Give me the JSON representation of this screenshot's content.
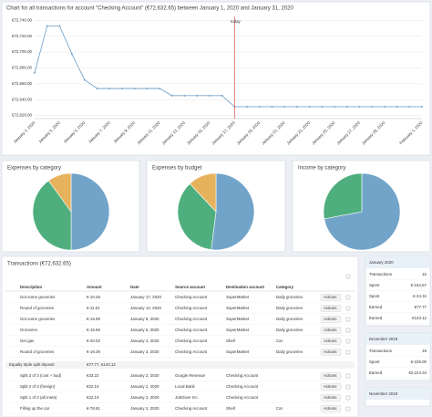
{
  "chart_data": [
    {
      "type": "line",
      "title": "Chart for all transactions for account \"Checking Account\" (€72,632.65) between January 1, 2020 and January 31, 2020",
      "x": [
        "January 1, 2020",
        null,
        "January 3, 2020",
        null,
        "January 5, 2020",
        null,
        "January 7, 2020",
        null,
        "January 9, 2020",
        null,
        "January 11, 2020",
        null,
        "January 13, 2020",
        null,
        "January 15, 2020",
        null,
        "January 17, 2020",
        null,
        "January 19, 2020",
        null,
        "January 21, 2020",
        null,
        "January 23, 2020",
        null,
        "January 25, 2020",
        null,
        "January 27, 2020",
        null,
        "January 29, 2020",
        null,
        null,
        "February 1, 2020"
      ],
      "series": [
        {
          "color": "#7aa6cc",
          "values": [
            72674,
            72733,
            72733,
            72697,
            72665,
            72654,
            72654,
            72654,
            72654,
            72654,
            72654,
            72645,
            72645,
            72645,
            72645,
            72645,
            72631,
            72631,
            72631,
            72631,
            72631,
            72631,
            72631,
            72631,
            72631,
            72631,
            72631,
            72631,
            72631,
            72631,
            72631,
            72631
          ]
        }
      ],
      "ylim": [
        72616,
        72745
      ],
      "yticks": [
        {
          "value": 72620,
          "label": "€72,620.00"
        },
        {
          "value": 72640,
          "label": "€72,640.00"
        },
        {
          "value": 72660,
          "label": "€72,660.00"
        },
        {
          "value": 72680,
          "label": "€72,680.00"
        },
        {
          "value": 72700,
          "label": "€72,700.00"
        },
        {
          "value": 72720,
          "label": "€72,720.00"
        },
        {
          "value": 72740,
          "label": "€72,740.00"
        }
      ],
      "grid": true,
      "annotations": [
        {
          "x": "January 17, 2020",
          "label": "today",
          "color": "#d9534f"
        }
      ]
    },
    {
      "type": "pie",
      "title": "Expenses by category",
      "values": [
        50,
        40,
        10
      ],
      "colors": [
        "#72a4c9",
        "#4fae7d",
        "#e6b25c"
      ]
    },
    {
      "type": "pie",
      "title": "Expenses by budget",
      "values": [
        52,
        36,
        12
      ],
      "colors": [
        "#72a4c9",
        "#4fae7d",
        "#e6b25c"
      ]
    },
    {
      "type": "pie",
      "title": "Income by category",
      "values": [
        72,
        28
      ],
      "colors": [
        "#72a4c9",
        "#4fae7d"
      ]
    }
  ],
  "transactions": {
    "title": "Transactions (€72,632.65)",
    "columns": [
      "Description",
      "Amount",
      "Date",
      "Source account",
      "Destination account",
      "Category"
    ],
    "action_label": "Actions",
    "rows": [
      [
        "Got some groceries",
        "€-10.26",
        "January 17, 2020",
        "Checking Account",
        "SuperMarket",
        "Daily groceries"
      ],
      [
        "Round of groceries",
        "€-11.51",
        "January 12, 2020",
        "Checking Account",
        "SuperMarket",
        "Daily groceries"
      ],
      [
        "Got some groceries",
        "€-15.95",
        "January 8, 2020",
        "Checking Account",
        "SuperMarket",
        "Daily groceries"
      ],
      [
        "Groceries",
        "€-15.66",
        "January 5, 2020",
        "Checking Account",
        "SuperMarket",
        "Daily groceries"
      ],
      [
        "Get gas",
        "€-40.02",
        "January 4, 2020",
        "Checking Account",
        "Shell",
        "Car"
      ],
      [
        "Round of groceries",
        "€-19.29",
        "January 3, 2020",
        "Checking Account",
        "SuperMarket",
        "Daily groceries"
      ],
      [
        "Equally triple split deposit",
        "€77.77, €143.12"
      ],
      [
        "Split 3 of 3 (cost + bud)",
        "€33.22",
        "January 2, 2020",
        "Google Revenue",
        "Checking Account"
      ],
      [
        "Split 2 of 3 (foreign)",
        "€22.10",
        "January 2, 2020",
        "Local Bank",
        "Checking Account"
      ],
      [
        "Split 1 of 3 (all meta)",
        "€22.10",
        "January 2, 2020",
        "JobGiver Inc.",
        "Checking Account"
      ],
      [
        "Filling up the car",
        "€-78.81",
        "January 2, 2020",
        "Checking Account",
        "Shell",
        "Car"
      ]
    ]
  },
  "summary": [
    {
      "title": "January 2020",
      "rows": [
        [
          "Transactions",
          "15"
        ],
        [
          "Spent",
          "€-154.67"
        ],
        [
          "Spent",
          "€-24.34"
        ],
        [
          "Earned",
          "€77.77"
        ],
        [
          "Earned",
          "€143.12"
        ]
      ]
    },
    {
      "title": "December 2019",
      "rows": [
        [
          "Transactions",
          "19"
        ],
        [
          "Spent",
          "€-229.00"
        ],
        [
          "Earned",
          "€2,224.34"
        ]
      ]
    },
    {
      "title": "November 2019",
      "rows": []
    }
  ]
}
